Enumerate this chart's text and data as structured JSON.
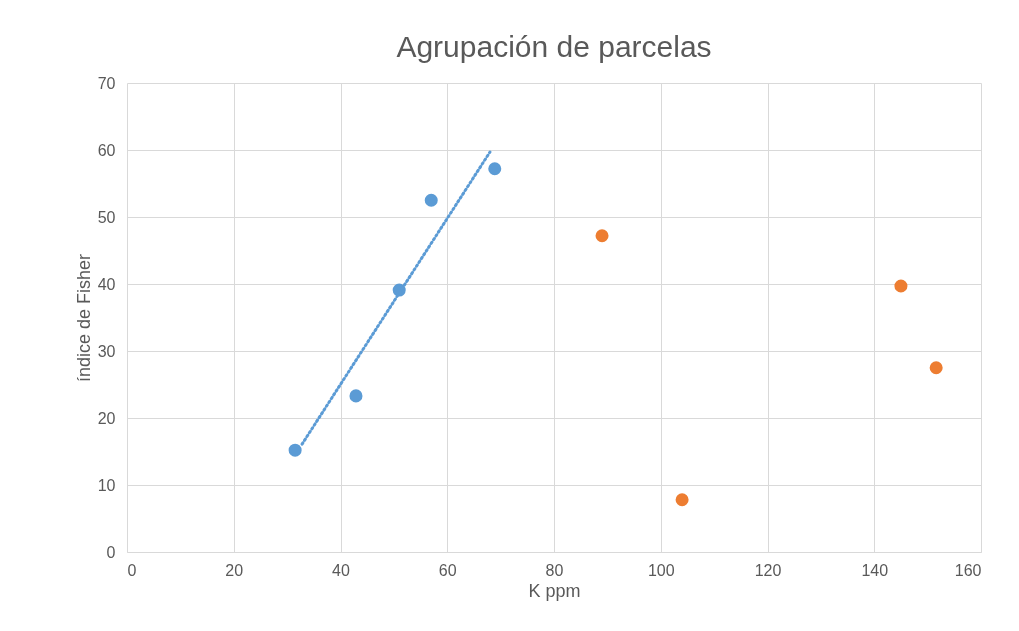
{
  "chart_data": {
    "type": "scatter",
    "title": "Agrupación de parcelas",
    "xlabel": "K ppm",
    "ylabel": "índice de Fisher",
    "xlim": [
      0,
      160
    ],
    "xticks": [
      0,
      20,
      40,
      60,
      80,
      100,
      120,
      140,
      160
    ],
    "ylim": [
      0,
      70
    ],
    "yticks": [
      0,
      10,
      20,
      30,
      40,
      50,
      60,
      70
    ],
    "grid": true,
    "marker": "circle",
    "series": [
      {
        "color": "#5b9bd5",
        "x": [
          31.5,
          42.9,
          51.0,
          57.0,
          68.9
        ],
        "values": [
          15.2,
          23.3,
          39.1,
          52.5,
          57.2
        ]
      },
      {
        "color": "#ed7d31",
        "x": [
          89.0,
          104.0,
          145.0,
          151.6
        ],
        "values": [
          47.2,
          7.8,
          39.7,
          27.5
        ]
      },
      {
        "type": "line",
        "color": "#5b9bd5",
        "line_style": "dotted",
        "marker": "none",
        "x": [
          32.8,
          68.0
        ],
        "values": [
          16.1,
          59.7
        ]
      }
    ]
  }
}
